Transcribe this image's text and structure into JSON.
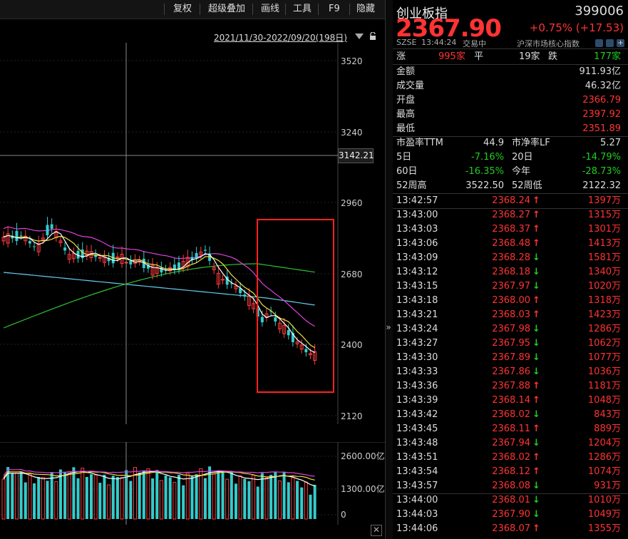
{
  "toolbar": {
    "items": [
      "复权",
      "超级叠加",
      "画线",
      "工具",
      "F9",
      "隐藏"
    ]
  },
  "chart": {
    "date_range": "2021/11/30-2022/09/20(198日)",
    "price_axis": [
      "3520",
      "3240",
      "2960",
      "2680",
      "2400",
      "2120"
    ],
    "crosshair_price": "3142.21",
    "volume_axis": [
      "2600.00亿",
      "1300.00亿",
      "0"
    ],
    "close_label": "✕"
  },
  "quote": {
    "name": "创业板指",
    "code": "399006",
    "price": "2367.90",
    "change": "+0.75% (+17.53)",
    "exchange": "SZSE",
    "time": "13:44:24",
    "status": "交易中",
    "category": "沪深市场核心指数"
  },
  "breadth": {
    "up_label": "涨",
    "up_value": "995家",
    "flat_label": "平",
    "flat_value": "19家",
    "down_label": "跌",
    "down_value": "177家"
  },
  "stats": [
    {
      "label": "金额",
      "value": "911.93亿",
      "color": "white"
    },
    {
      "label": "成交量",
      "value": "46.32亿",
      "color": "white"
    },
    {
      "label": "开盘",
      "value": "2366.79",
      "color": "red"
    },
    {
      "label": "最高",
      "value": "2397.92",
      "color": "red"
    },
    {
      "label": "最低",
      "value": "2351.89",
      "color": "red"
    }
  ],
  "metrics": [
    {
      "l1": "市盈率TTM",
      "v1": "44.9",
      "c1": "white",
      "l2": "市净率LF",
      "v2": "5.27",
      "c2": "white"
    },
    {
      "l1": "5日",
      "v1": "-7.16%",
      "c1": "green",
      "l2": "20日",
      "v2": "-14.79%",
      "c2": "green"
    },
    {
      "l1": "60日",
      "v1": "-16.35%",
      "c1": "green",
      "l2": "今年",
      "v2": "-28.73%",
      "c2": "green"
    },
    {
      "l1": "52周高",
      "v1": "3522.50",
      "c1": "white",
      "l2": "52周低",
      "v2": "2122.32",
      "c2": "white"
    }
  ],
  "ticks": [
    {
      "time": "13:42:57",
      "price": "2368.24",
      "dir": "up",
      "vol": "1397万"
    },
    {
      "time": "13:43:00",
      "price": "2368.27",
      "dir": "up",
      "vol": "1315万"
    },
    {
      "time": "13:43:03",
      "price": "2368.37",
      "dir": "up",
      "vol": "1301万"
    },
    {
      "time": "13:43:06",
      "price": "2368.48",
      "dir": "up",
      "vol": "1413万"
    },
    {
      "time": "13:43:09",
      "price": "2368.28",
      "dir": "down",
      "vol": "1581万"
    },
    {
      "time": "13:43:12",
      "price": "2368.18",
      "dir": "down",
      "vol": "1340万"
    },
    {
      "time": "13:43:15",
      "price": "2367.97",
      "dir": "down",
      "vol": "1020万"
    },
    {
      "time": "13:43:18",
      "price": "2368.00",
      "dir": "up",
      "vol": "1318万"
    },
    {
      "time": "13:43:21",
      "price": "2368.03",
      "dir": "up",
      "vol": "1423万"
    },
    {
      "time": "13:43:24",
      "price": "2367.98",
      "dir": "down",
      "vol": "1286万"
    },
    {
      "time": "13:43:27",
      "price": "2367.95",
      "dir": "down",
      "vol": "1062万"
    },
    {
      "time": "13:43:30",
      "price": "2367.89",
      "dir": "down",
      "vol": "1077万"
    },
    {
      "time": "13:43:33",
      "price": "2367.86",
      "dir": "down",
      "vol": "1036万"
    },
    {
      "time": "13:43:36",
      "price": "2367.88",
      "dir": "up",
      "vol": "1181万"
    },
    {
      "time": "13:43:39",
      "price": "2368.14",
      "dir": "up",
      "vol": "1048万"
    },
    {
      "time": "13:43:42",
      "price": "2368.02",
      "dir": "down",
      "vol": "843万"
    },
    {
      "time": "13:43:45",
      "price": "2368.11",
      "dir": "up",
      "vol": "889万"
    },
    {
      "time": "13:43:48",
      "price": "2367.94",
      "dir": "down",
      "vol": "1204万"
    },
    {
      "time": "13:43:51",
      "price": "2368.02",
      "dir": "up",
      "vol": "1286万"
    },
    {
      "time": "13:43:54",
      "price": "2368.12",
      "dir": "up",
      "vol": "1074万"
    },
    {
      "time": "13:43:57",
      "price": "2368.08",
      "dir": "down",
      "vol": "931万"
    },
    {
      "time": "13:44:00",
      "price": "2368.01",
      "dir": "down",
      "vol": "1010万"
    },
    {
      "time": "13:44:03",
      "price": "2367.90",
      "dir": "down",
      "vol": "1049万"
    },
    {
      "time": "13:44:06",
      "price": "2368.07",
      "dir": "up",
      "vol": "1355万"
    }
  ],
  "colors": {
    "up": "#ff3333",
    "down": "#22cc22",
    "candle_up": "#ff3b3b",
    "candle_down": "#33cccc",
    "ma5": "#ffffff",
    "ma10": "#f0e040",
    "ma20": "#e040e0",
    "ma60": "#30c030",
    "ma120": "#66ccee",
    "highlight_box": "#ff2222"
  },
  "icons": {
    "date_dropdown": "triangle-down-icon",
    "lock": "lock-icon",
    "expand": "chevron-double-right-icon",
    "close": "close-icon"
  }
}
